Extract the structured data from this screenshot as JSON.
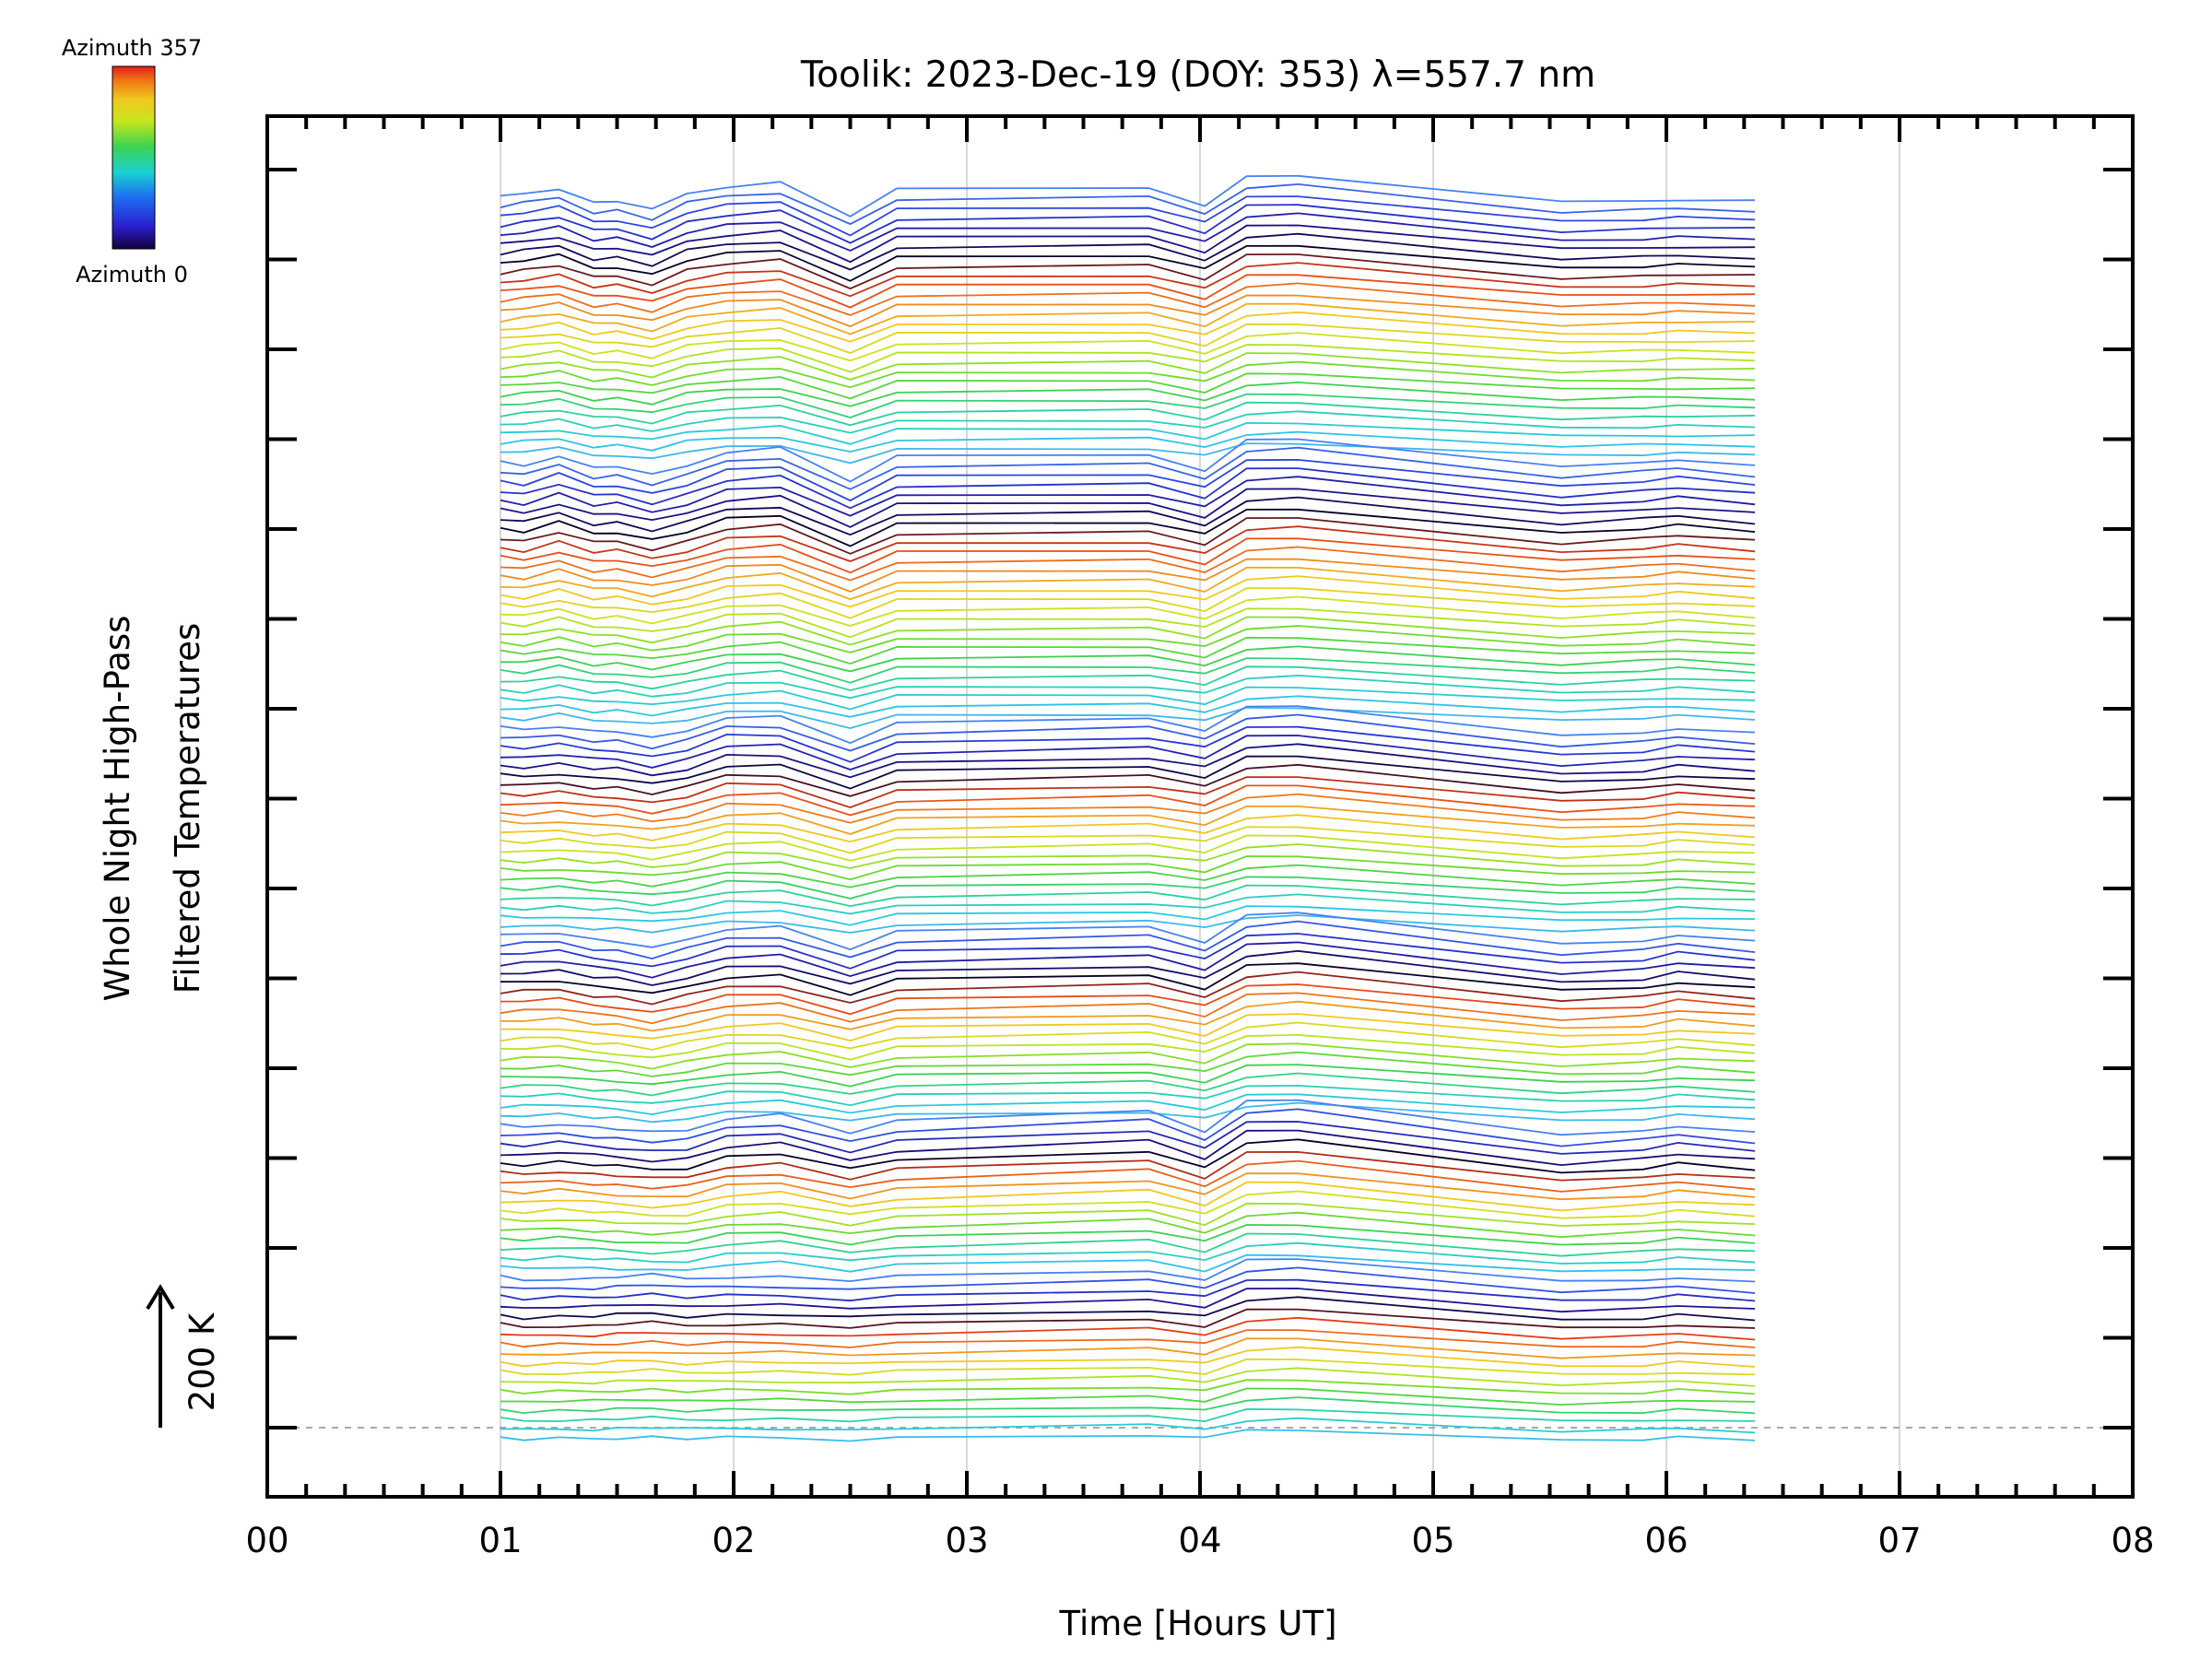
{
  "chart_data": {
    "type": "line",
    "title": "Toolik: 2023-Dec-19 (DOY: 353) λ=557.7 nm",
    "xlabel": "Time [Hours UT]",
    "ylabel_line1": "Whole Night High-Pass",
    "ylabel_line2": "Filtered Temperatures",
    "scale_label": "200 K",
    "xlim": [
      0,
      8
    ],
    "x_ticks": [
      "00",
      "01",
      "02",
      "03",
      "04",
      "05",
      "06",
      "07",
      "08"
    ],
    "grid": "vertical",
    "colorbar": {
      "top_label": "Azimuth 357",
      "bottom_label": "Azimuth 0",
      "colormap": "rainbow"
    },
    "time_samples": [
      1.0,
      1.1,
      1.25,
      1.4,
      1.5,
      1.65,
      1.8,
      1.97,
      2.2,
      2.5,
      2.7,
      3.78,
      4.02,
      4.2,
      4.42,
      5.55,
      5.9,
      6.05,
      6.38
    ],
    "series_groups": [
      {
        "n": 28,
        "profile": [
          0,
          4,
          10,
          -6,
          -4,
          -14,
          4,
          12,
          16,
          -20,
          8,
          10,
          -8,
          22,
          24,
          -6,
          -4,
          -2,
          -4
        ],
        "azimuth_order": "blue-black-orange-yellow-green-cyan"
      },
      {
        "n": 28,
        "profile": [
          0,
          -4,
          8,
          -6,
          -4,
          -14,
          -4,
          12,
          16,
          -20,
          6,
          8,
          -8,
          24,
          26,
          -6,
          0,
          4,
          -4
        ],
        "azimuth_order": "blue-black-orange-yellow-green-cyan"
      },
      {
        "n": 22,
        "profile": [
          0,
          -2,
          2,
          -4,
          -4,
          -12,
          -4,
          12,
          12,
          -16,
          4,
          10,
          -2,
          22,
          24,
          -10,
          -6,
          0,
          -6
        ],
        "azimuth_order": "blue-black-orange-yellow-green-cyan"
      },
      {
        "n": 20,
        "profile": [
          0,
          2,
          4,
          -4,
          -6,
          -14,
          -4,
          8,
          10,
          -14,
          4,
          10,
          -6,
          22,
          26,
          -10,
          -6,
          2,
          -6
        ],
        "azimuth_order": "blue-black-orange-yellow-green-cyan"
      },
      {
        "n": 16,
        "profile": [
          0,
          -2,
          2,
          -2,
          -4,
          -8,
          -6,
          8,
          12,
          -8,
          4,
          16,
          -6,
          26,
          28,
          -12,
          -6,
          0,
          -8
        ],
        "azimuth_order": "blue-black-orange-yellow-green-cyan"
      },
      {
        "n": 18,
        "profile": [
          0,
          -4,
          -2,
          -2,
          0,
          2,
          -2,
          0,
          0,
          -4,
          0,
          6,
          -2,
          18,
          20,
          -6,
          -4,
          0,
          -6
        ],
        "azimuth_order": "blue-black-orange-yellow-green-cyan"
      }
    ]
  }
}
